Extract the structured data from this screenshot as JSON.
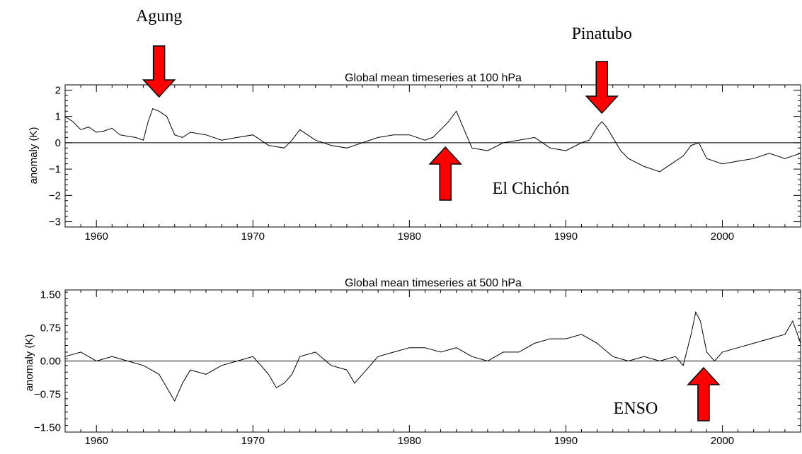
{
  "chart_data": [
    {
      "type": "line",
      "title": "Global mean timeseries at 100 hPa",
      "ylabel": "anomaly (K)",
      "xlabel": "",
      "xlim": [
        1958,
        2005
      ],
      "ylim": [
        -3.2,
        2.2
      ],
      "xticks": [
        1960,
        1970,
        1980,
        1990,
        2000
      ],
      "xtick_labels": [
        "1960",
        "1970",
        "1980",
        "1990",
        "2000"
      ],
      "yticks": [
        -3,
        -2,
        -1,
        0,
        1,
        2
      ],
      "ytick_labels": [
        "−3",
        "−2",
        "−1",
        "0",
        "1",
        "2"
      ],
      "zero_line": true,
      "grid": false,
      "series": [
        {
          "x": [
            1958.0,
            1958.5,
            1959.0,
            1959.5,
            1960.0,
            1960.5,
            1961.0,
            1961.5,
            1962.0,
            1962.5,
            1963.0,
            1963.3,
            1963.6,
            1964.0,
            1964.5,
            1965.0,
            1965.5,
            1966.0,
            1967.0,
            1968.0,
            1969.0,
            1970.0,
            1971.0,
            1972.0,
            1972.5,
            1973.0,
            1974.0,
            1975.0,
            1976.0,
            1977.0,
            1978.0,
            1979.0,
            1980.0,
            1981.0,
            1981.5,
            1982.0,
            1982.5,
            1983.0,
            1983.5,
            1984.0,
            1985.0,
            1986.0,
            1987.0,
            1988.0,
            1989.0,
            1990.0,
            1991.0,
            1991.5,
            1992.0,
            1992.3,
            1992.6,
            1993.0,
            1993.5,
            1994.0,
            1995.0,
            1996.0,
            1997.0,
            1997.5,
            1998.0,
            1998.5,
            1999.0,
            2000.0,
            2001.0,
            2002.0,
            2003.0,
            2004.0,
            2005.0
          ],
          "y": [
            1.0,
            0.8,
            0.5,
            0.6,
            0.4,
            0.45,
            0.55,
            0.3,
            0.25,
            0.2,
            0.1,
            0.8,
            1.3,
            1.2,
            1.0,
            0.3,
            0.2,
            0.4,
            0.3,
            0.1,
            0.2,
            0.3,
            -0.1,
            -0.2,
            0.1,
            0.5,
            0.1,
            -0.1,
            -0.2,
            0.0,
            0.2,
            0.3,
            0.3,
            0.1,
            0.2,
            0.5,
            0.8,
            1.2,
            0.5,
            -0.2,
            -0.3,
            0.0,
            0.1,
            0.2,
            -0.2,
            -0.3,
            0.0,
            0.1,
            0.6,
            0.8,
            0.6,
            0.2,
            -0.3,
            -0.6,
            -0.9,
            -1.1,
            -0.7,
            -0.5,
            -0.1,
            0.0,
            -0.6,
            -0.8,
            -0.7,
            -0.6,
            -0.4,
            -0.6,
            -0.4
          ]
        }
      ],
      "annotations": [
        {
          "text": "Agung",
          "x": 1964.0,
          "direction": "down"
        },
        {
          "text": "El Chichón",
          "x": 1982.3,
          "direction": "up"
        },
        {
          "text": "Pinatubo",
          "x": 1992.3,
          "direction": "down"
        }
      ]
    },
    {
      "type": "line",
      "title": "Global mean timeseries at 500 hPa",
      "ylabel": "anomaly (K)",
      "xlabel": "",
      "xlim": [
        1958,
        2005
      ],
      "ylim": [
        -1.6,
        1.6
      ],
      "xticks": [
        1960,
        1970,
        1980,
        1990,
        2000
      ],
      "xtick_labels": [
        "1960",
        "1970",
        "1980",
        "1990",
        "2000"
      ],
      "yticks": [
        -1.5,
        -0.75,
        0.0,
        0.75,
        1.5
      ],
      "ytick_labels": [
        "−1.50",
        "−0.75",
        "0.00",
        "0.75",
        "1.50"
      ],
      "zero_line": true,
      "grid": false,
      "series": [
        {
          "x": [
            1958.0,
            1959.0,
            1960.0,
            1961.0,
            1962.0,
            1963.0,
            1964.0,
            1964.5,
            1965.0,
            1965.5,
            1966.0,
            1967.0,
            1968.0,
            1969.0,
            1970.0,
            1971.0,
            1971.5,
            1972.0,
            1972.5,
            1973.0,
            1974.0,
            1975.0,
            1976.0,
            1976.5,
            1977.0,
            1978.0,
            1979.0,
            1980.0,
            1981.0,
            1982.0,
            1983.0,
            1984.0,
            1985.0,
            1986.0,
            1987.0,
            1988.0,
            1989.0,
            1990.0,
            1991.0,
            1992.0,
            1993.0,
            1994.0,
            1995.0,
            1996.0,
            1997.0,
            1997.5,
            1998.0,
            1998.3,
            1998.6,
            1999.0,
            1999.5,
            2000.0,
            2001.0,
            2002.0,
            2003.0,
            2004.0,
            2004.5,
            2005.0
          ],
          "y": [
            0.1,
            0.2,
            0.0,
            0.1,
            0.0,
            -0.1,
            -0.3,
            -0.6,
            -0.9,
            -0.5,
            -0.2,
            -0.3,
            -0.1,
            0.0,
            0.1,
            -0.3,
            -0.6,
            -0.5,
            -0.3,
            0.1,
            0.2,
            -0.1,
            -0.2,
            -0.5,
            -0.3,
            0.1,
            0.2,
            0.3,
            0.3,
            0.2,
            0.3,
            0.1,
            0.0,
            0.2,
            0.2,
            0.4,
            0.5,
            0.5,
            0.6,
            0.4,
            0.1,
            0.0,
            0.1,
            0.0,
            0.1,
            -0.1,
            0.6,
            1.1,
            0.9,
            0.2,
            0.0,
            0.2,
            0.3,
            0.4,
            0.5,
            0.6,
            0.9,
            0.4
          ]
        }
      ],
      "annotations": [
        {
          "text": "ENSO",
          "x": 1998.8,
          "direction": "up"
        }
      ]
    }
  ]
}
